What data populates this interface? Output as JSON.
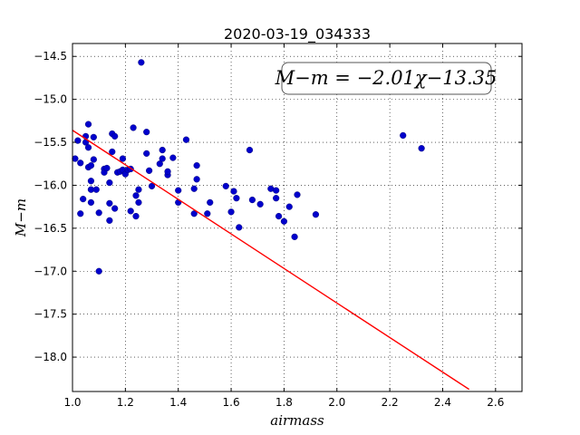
{
  "chart_data": {
    "type": "scatter",
    "title": "2020-03-19_034333",
    "xlabel": "airmass",
    "ylabel": "M−m",
    "xlim": [
      1.0,
      2.7
    ],
    "ylim": [
      -18.4,
      -14.35
    ],
    "y_inverted": true,
    "grid": true,
    "annotation": "M−m = −2.01χ−13.35",
    "x_ticks": [
      1.0,
      1.2,
      1.4,
      1.6,
      1.8,
      2.0,
      2.2,
      2.4,
      2.6
    ],
    "x_tick_labels": [
      "1.0",
      "1.2",
      "1.4",
      "1.6",
      "1.8",
      "2.0",
      "2.2",
      "2.4",
      "2.6"
    ],
    "y_ticks": [
      -14.5,
      -15.0,
      -15.5,
      -16.0,
      -16.5,
      -17.0,
      -17.5,
      -18.0
    ],
    "y_tick_labels": [
      "−14.5",
      "−15.0",
      "−15.5",
      "−16.0",
      "−16.5",
      "−17.0",
      "−17.5",
      "−18.0"
    ],
    "fit": {
      "slope": -2.01,
      "intercept": -13.35,
      "x_range": [
        1.0,
        2.5
      ],
      "color": "#ff0000"
    },
    "point_color": "#0000cc",
    "x": [
      1.01,
      1.02,
      1.03,
      1.03,
      1.04,
      1.05,
      1.05,
      1.06,
      1.06,
      1.06,
      1.07,
      1.07,
      1.07,
      1.08,
      1.08,
      1.07,
      1.09,
      1.1,
      1.1,
      1.12,
      1.12,
      1.13,
      1.14,
      1.14,
      1.14,
      1.15,
      1.15,
      1.16,
      1.16,
      1.17,
      1.18,
      1.19,
      1.19,
      1.2,
      1.21,
      1.22,
      1.22,
      1.23,
      1.24,
      1.24,
      1.25,
      1.25,
      1.26,
      1.28,
      1.28,
      1.29,
      1.3,
      1.33,
      1.34,
      1.34,
      1.36,
      1.36,
      1.38,
      1.4,
      1.4,
      1.43,
      1.46,
      1.46,
      1.47,
      1.47,
      1.51,
      1.52,
      1.58,
      1.6,
      1.61,
      1.62,
      1.63,
      1.67,
      1.68,
      1.71,
      1.75,
      1.77,
      1.77,
      1.78,
      1.8,
      1.82,
      1.84,
      1.85,
      1.92,
      2.25,
      2.32
    ],
    "y": [
      -15.69,
      -15.48,
      -16.33,
      -15.74,
      -16.16,
      -15.43,
      -15.5,
      -15.79,
      -15.29,
      -15.56,
      -15.77,
      -15.95,
      -16.05,
      -15.7,
      -15.44,
      -16.2,
      -16.05,
      -17.0,
      -16.32,
      -15.81,
      -15.85,
      -15.8,
      -15.97,
      -16.21,
      -16.41,
      -15.4,
      -15.61,
      -15.43,
      -16.27,
      -15.85,
      -15.84,
      -15.69,
      -15.82,
      -15.87,
      -15.82,
      -16.3,
      -15.81,
      -15.33,
      -16.12,
      -16.36,
      -16.2,
      -16.05,
      -14.57,
      -15.38,
      -15.63,
      -15.83,
      -16.01,
      -15.75,
      -15.69,
      -15.59,
      -15.88,
      -15.84,
      -15.68,
      -16.06,
      -16.2,
      -15.47,
      -16.04,
      -16.33,
      -15.77,
      -15.93,
      -16.33,
      -16.2,
      -16.01,
      -16.31,
      -16.07,
      -16.15,
      -16.49,
      -15.59,
      -16.17,
      -16.22,
      -16.04,
      -16.06,
      -16.15,
      -16.36,
      -16.42,
      -16.25,
      -16.6,
      -16.11,
      -16.34,
      -15.42,
      -15.57
    ]
  }
}
